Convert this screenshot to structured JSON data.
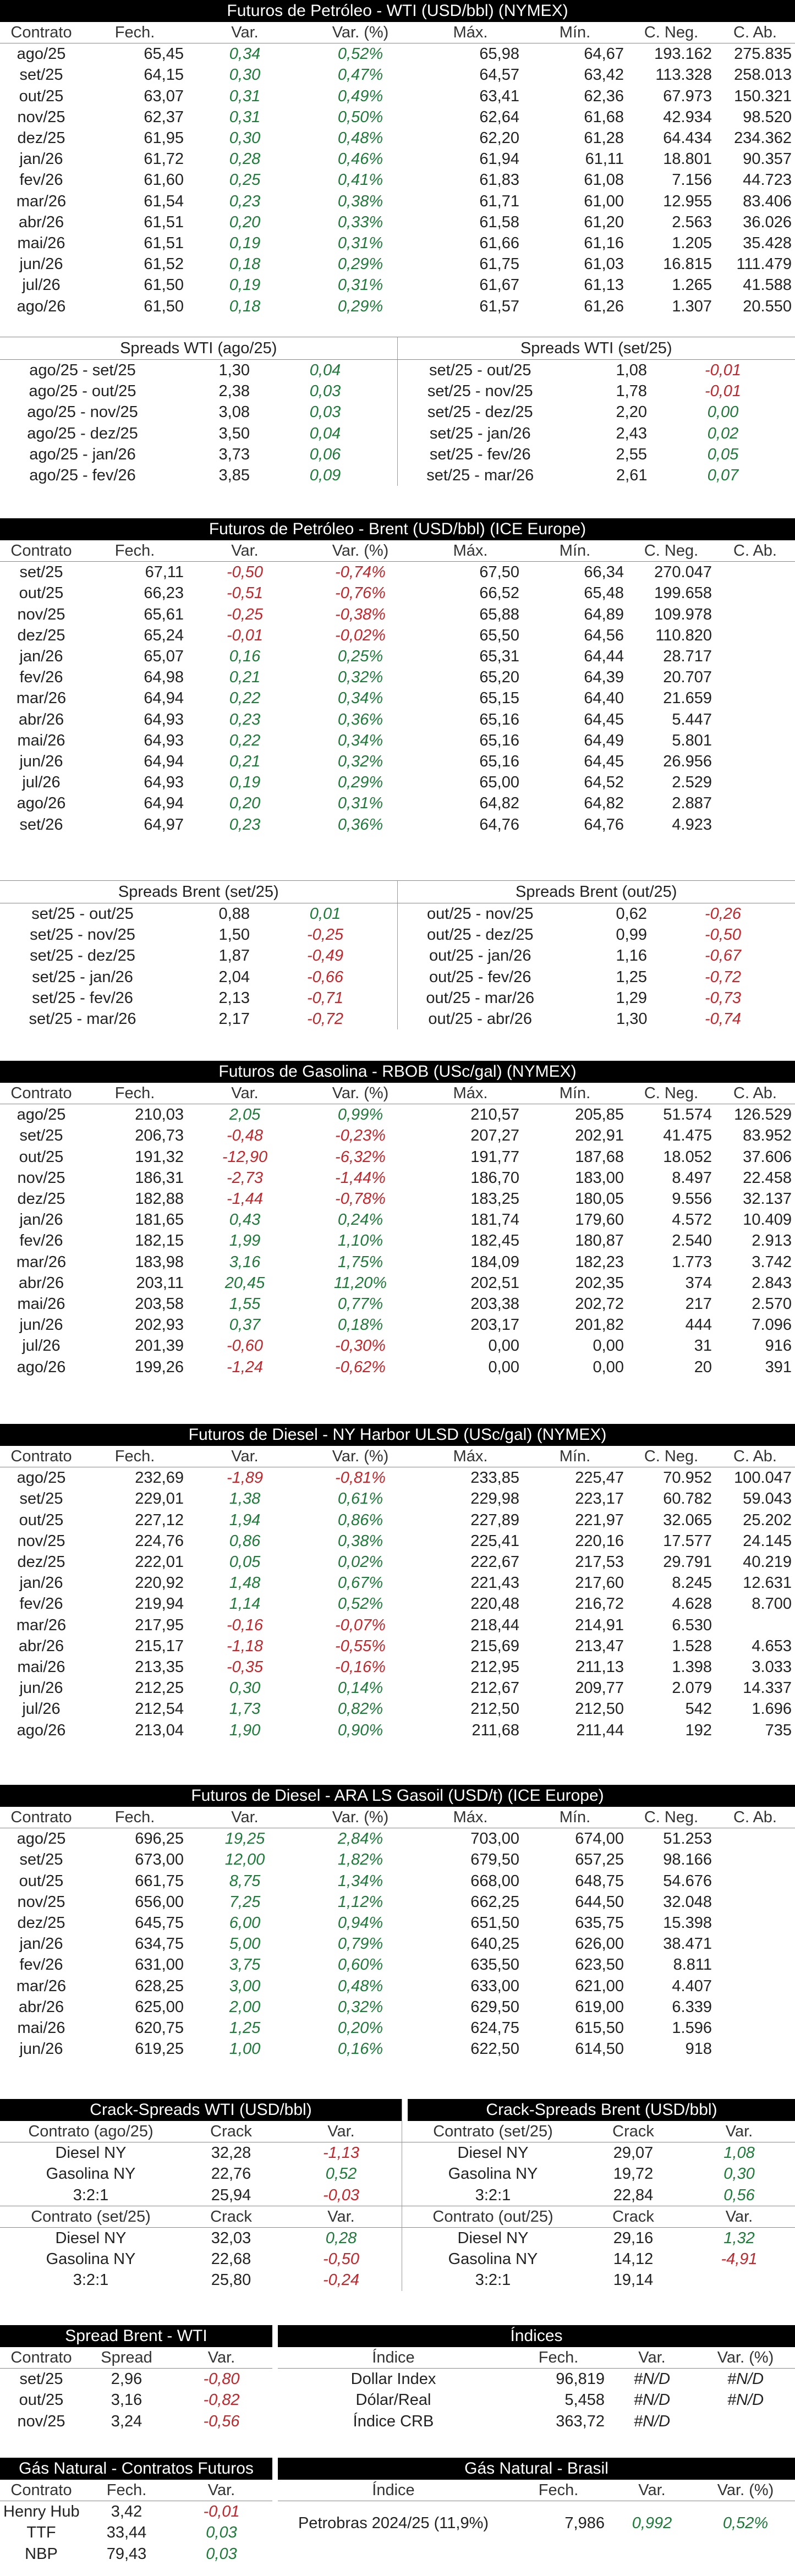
{
  "wti": {
    "title": "Futuros de Petróleo - WTI (USD/bbl) (NYMEX)",
    "cols": [
      "Contrato",
      "Fech.",
      "Var.",
      "Var. (%)",
      "Máx.",
      "Mín.",
      "C. Neg.",
      "C. Ab."
    ],
    "rows": [
      [
        "ago/25",
        "65,45",
        "0,34",
        "0,52%",
        "65,98",
        "64,67",
        "193.162",
        "275.835"
      ],
      [
        "set/25",
        "64,15",
        "0,30",
        "0,47%",
        "64,57",
        "63,42",
        "113.328",
        "258.013"
      ],
      [
        "out/25",
        "63,07",
        "0,31",
        "0,49%",
        "63,41",
        "62,36",
        "67.973",
        "150.321"
      ],
      [
        "nov/25",
        "62,37",
        "0,31",
        "0,50%",
        "62,64",
        "61,68",
        "42.934",
        "98.520"
      ],
      [
        "dez/25",
        "61,95",
        "0,30",
        "0,48%",
        "62,20",
        "61,28",
        "64.434",
        "234.362"
      ],
      [
        "jan/26",
        "61,72",
        "0,28",
        "0,46%",
        "61,94",
        "61,11",
        "18.801",
        "90.357"
      ],
      [
        "fev/26",
        "61,60",
        "0,25",
        "0,41%",
        "61,83",
        "61,08",
        "7.156",
        "44.723"
      ],
      [
        "mar/26",
        "61,54",
        "0,23",
        "0,38%",
        "61,71",
        "61,00",
        "12.955",
        "83.406"
      ],
      [
        "abr/26",
        "61,51",
        "0,20",
        "0,33%",
        "61,58",
        "61,20",
        "2.563",
        "36.026"
      ],
      [
        "mai/26",
        "61,51",
        "0,19",
        "0,31%",
        "61,66",
        "61,16",
        "1.205",
        "35.428"
      ],
      [
        "jun/26",
        "61,52",
        "0,18",
        "0,29%",
        "61,75",
        "61,03",
        "16.815",
        "111.479"
      ],
      [
        "jul/26",
        "61,50",
        "0,19",
        "0,31%",
        "61,67",
        "61,13",
        "1.265",
        "41.588"
      ],
      [
        "ago/26",
        "61,50",
        "0,18",
        "0,29%",
        "61,57",
        "61,26",
        "1.307",
        "20.550"
      ]
    ]
  },
  "wti_spreads": {
    "left_title": "Spreads WTI (ago/25)",
    "right_title": "Spreads WTI (set/25)",
    "left": [
      [
        "ago/25 - set/25",
        "1,30",
        "0,04"
      ],
      [
        "ago/25 - out/25",
        "2,38",
        "0,03"
      ],
      [
        "ago/25 - nov/25",
        "3,08",
        "0,03"
      ],
      [
        "ago/25 - dez/25",
        "3,50",
        "0,04"
      ],
      [
        "ago/25 - jan/26",
        "3,73",
        "0,06"
      ],
      [
        "ago/25 - fev/26",
        "3,85",
        "0,09"
      ]
    ],
    "right": [
      [
        "set/25 - out/25",
        "1,08",
        "-0,01"
      ],
      [
        "set/25 - nov/25",
        "1,78",
        "-0,01"
      ],
      [
        "set/25 - dez/25",
        "2,20",
        "0,00"
      ],
      [
        "set/25 - jan/26",
        "2,43",
        "0,02"
      ],
      [
        "set/25 - fev/26",
        "2,55",
        "0,05"
      ],
      [
        "set/25 - mar/26",
        "2,61",
        "0,07"
      ]
    ]
  },
  "brent": {
    "title": "Futuros de Petróleo - Brent (USD/bbl) (ICE Europe)",
    "cols": [
      "Contrato",
      "Fech.",
      "Var.",
      "Var. (%)",
      "Máx.",
      "Mín.",
      "C. Neg.",
      "C. Ab."
    ],
    "rows": [
      [
        "set/25",
        "67,11",
        "-0,50",
        "-0,74%",
        "67,50",
        "66,34",
        "270.047",
        ""
      ],
      [
        "out/25",
        "66,23",
        "-0,51",
        "-0,76%",
        "66,52",
        "65,48",
        "199.658",
        ""
      ],
      [
        "nov/25",
        "65,61",
        "-0,25",
        "-0,38%",
        "65,88",
        "64,89",
        "109.978",
        ""
      ],
      [
        "dez/25",
        "65,24",
        "-0,01",
        "-0,02%",
        "65,50",
        "64,56",
        "110.820",
        ""
      ],
      [
        "jan/26",
        "65,07",
        "0,16",
        "0,25%",
        "65,31",
        "64,44",
        "28.717",
        ""
      ],
      [
        "fev/26",
        "64,98",
        "0,21",
        "0,32%",
        "65,20",
        "64,39",
        "20.707",
        ""
      ],
      [
        "mar/26",
        "64,94",
        "0,22",
        "0,34%",
        "65,15",
        "64,40",
        "21.659",
        ""
      ],
      [
        "abr/26",
        "64,93",
        "0,23",
        "0,36%",
        "65,16",
        "64,45",
        "5.447",
        ""
      ],
      [
        "mai/26",
        "64,93",
        "0,22",
        "0,34%",
        "65,16",
        "64,49",
        "5.801",
        ""
      ],
      [
        "jun/26",
        "64,94",
        "0,21",
        "0,32%",
        "65,16",
        "64,45",
        "26.956",
        ""
      ],
      [
        "jul/26",
        "64,93",
        "0,19",
        "0,29%",
        "65,00",
        "64,52",
        "2.529",
        ""
      ],
      [
        "ago/26",
        "64,94",
        "0,20",
        "0,31%",
        "64,82",
        "64,82",
        "2.887",
        ""
      ],
      [
        "set/26",
        "64,97",
        "0,23",
        "0,36%",
        "64,76",
        "64,76",
        "4.923",
        ""
      ]
    ]
  },
  "brent_spreads": {
    "left_title": "Spreads Brent (set/25)",
    "right_title": "Spreads Brent (out/25)",
    "left": [
      [
        "set/25 - out/25",
        "0,88",
        "0,01"
      ],
      [
        "set/25 - nov/25",
        "1,50",
        "-0,25"
      ],
      [
        "set/25 - dez/25",
        "1,87",
        "-0,49"
      ],
      [
        "set/25 - jan/26",
        "2,04",
        "-0,66"
      ],
      [
        "set/25 - fev/26",
        "2,13",
        "-0,71"
      ],
      [
        "set/25 - mar/26",
        "2,17",
        "-0,72"
      ]
    ],
    "right": [
      [
        "out/25 - nov/25",
        "0,62",
        "-0,26"
      ],
      [
        "out/25 - dez/25",
        "0,99",
        "-0,50"
      ],
      [
        "out/25 - jan/26",
        "1,16",
        "-0,67"
      ],
      [
        "out/25 - fev/26",
        "1,25",
        "-0,72"
      ],
      [
        "out/25 - mar/26",
        "1,29",
        "-0,73"
      ],
      [
        "out/25 - abr/26",
        "1,30",
        "-0,74"
      ]
    ]
  },
  "rbob": {
    "title": "Futuros de Gasolina - RBOB (USc/gal) (NYMEX)",
    "cols": [
      "Contrato",
      "Fech.",
      "Var.",
      "Var. (%)",
      "Máx.",
      "Mín.",
      "C. Neg.",
      "C. Ab."
    ],
    "rows": [
      [
        "ago/25",
        "210,03",
        "2,05",
        "0,99%",
        "210,57",
        "205,85",
        "51.574",
        "126.529"
      ],
      [
        "set/25",
        "206,73",
        "-0,48",
        "-0,23%",
        "207,27",
        "202,91",
        "41.475",
        "83.952"
      ],
      [
        "out/25",
        "191,32",
        "-12,90",
        "-6,32%",
        "191,77",
        "187,68",
        "18.052",
        "37.606"
      ],
      [
        "nov/25",
        "186,31",
        "-2,73",
        "-1,44%",
        "186,70",
        "183,00",
        "8.497",
        "22.458"
      ],
      [
        "dez/25",
        "182,88",
        "-1,44",
        "-0,78%",
        "183,25",
        "180,05",
        "9.556",
        "32.137"
      ],
      [
        "jan/26",
        "181,65",
        "0,43",
        "0,24%",
        "181,74",
        "179,60",
        "4.572",
        "10.409"
      ],
      [
        "fev/26",
        "182,15",
        "1,99",
        "1,10%",
        "182,45",
        "180,87",
        "2.540",
        "2.913"
      ],
      [
        "mar/26",
        "183,98",
        "3,16",
        "1,75%",
        "184,09",
        "182,23",
        "1.773",
        "3.742"
      ],
      [
        "abr/26",
        "203,11",
        "20,45",
        "11,20%",
        "202,51",
        "202,35",
        "374",
        "2.843"
      ],
      [
        "mai/26",
        "203,58",
        "1,55",
        "0,77%",
        "203,38",
        "202,72",
        "217",
        "2.570"
      ],
      [
        "jun/26",
        "202,93",
        "0,37",
        "0,18%",
        "203,17",
        "201,82",
        "444",
        "7.096"
      ],
      [
        "jul/26",
        "201,39",
        "-0,60",
        "-0,30%",
        "0,00",
        "0,00",
        "31",
        "916"
      ],
      [
        "ago/26",
        "199,26",
        "-1,24",
        "-0,62%",
        "0,00",
        "0,00",
        "20",
        "391"
      ]
    ]
  },
  "ulsd": {
    "title": "Futuros de Diesel - NY Harbor ULSD (USc/gal) (NYMEX)",
    "cols": [
      "Contrato",
      "Fech.",
      "Var.",
      "Var. (%)",
      "Máx.",
      "Mín.",
      "C. Neg.",
      "C. Ab."
    ],
    "rows": [
      [
        "ago/25",
        "232,69",
        "-1,89",
        "-0,81%",
        "233,85",
        "225,47",
        "70.952",
        "100.047"
      ],
      [
        "set/25",
        "229,01",
        "1,38",
        "0,61%",
        "229,98",
        "223,17",
        "60.782",
        "59.043"
      ],
      [
        "out/25",
        "227,12",
        "1,94",
        "0,86%",
        "227,89",
        "221,97",
        "32.065",
        "25.202"
      ],
      [
        "nov/25",
        "224,76",
        "0,86",
        "0,38%",
        "225,41",
        "220,16",
        "17.577",
        "24.145"
      ],
      [
        "dez/25",
        "222,01",
        "0,05",
        "0,02%",
        "222,67",
        "217,53",
        "29.791",
        "40.219"
      ],
      [
        "jan/26",
        "220,92",
        "1,48",
        "0,67%",
        "221,43",
        "217,60",
        "8.245",
        "12.631"
      ],
      [
        "fev/26",
        "219,94",
        "1,14",
        "0,52%",
        "220,48",
        "216,72",
        "4.628",
        "8.700"
      ],
      [
        "mar/26",
        "217,95",
        "-0,16",
        "-0,07%",
        "218,44",
        "214,91",
        "6.530",
        ""
      ],
      [
        "abr/26",
        "215,17",
        "-1,18",
        "-0,55%",
        "215,69",
        "213,47",
        "1.528",
        "4.653"
      ],
      [
        "mai/26",
        "213,35",
        "-0,35",
        "-0,16%",
        "212,95",
        "211,13",
        "1.398",
        "3.033"
      ],
      [
        "jun/26",
        "212,25",
        "0,30",
        "0,14%",
        "212,67",
        "209,77",
        "2.079",
        "14.337"
      ],
      [
        "jul/26",
        "212,54",
        "1,73",
        "0,82%",
        "212,50",
        "212,50",
        "542",
        "1.696"
      ],
      [
        "ago/26",
        "213,04",
        "1,90",
        "0,90%",
        "211,68",
        "211,44",
        "192",
        "735"
      ]
    ]
  },
  "gasoil": {
    "title": "Futuros de Diesel - ARA LS Gasoil (USD/t) (ICE Europe)",
    "cols": [
      "Contrato",
      "Fech.",
      "Var.",
      "Var. (%)",
      "Máx.",
      "Mín.",
      "C. Neg.",
      "C. Ab."
    ],
    "rows": [
      [
        "ago/25",
        "696,25",
        "19,25",
        "2,84%",
        "703,00",
        "674,00",
        "51.253",
        ""
      ],
      [
        "set/25",
        "673,00",
        "12,00",
        "1,82%",
        "679,50",
        "657,25",
        "98.166",
        ""
      ],
      [
        "out/25",
        "661,75",
        "8,75",
        "1,34%",
        "668,00",
        "648,75",
        "54.676",
        ""
      ],
      [
        "nov/25",
        "656,00",
        "7,25",
        "1,12%",
        "662,25",
        "644,50",
        "32.048",
        ""
      ],
      [
        "dez/25",
        "645,75",
        "6,00",
        "0,94%",
        "651,50",
        "635,75",
        "15.398",
        ""
      ],
      [
        "jan/26",
        "634,75",
        "5,00",
        "0,79%",
        "640,25",
        "626,00",
        "38.471",
        ""
      ],
      [
        "fev/26",
        "631,00",
        "3,75",
        "0,60%",
        "635,50",
        "623,50",
        "8.811",
        ""
      ],
      [
        "mar/26",
        "628,25",
        "3,00",
        "0,48%",
        "633,00",
        "621,00",
        "4.407",
        ""
      ],
      [
        "abr/26",
        "625,00",
        "2,00",
        "0,32%",
        "629,50",
        "619,00",
        "6.339",
        ""
      ],
      [
        "mai/26",
        "620,75",
        "1,25",
        "0,20%",
        "624,75",
        "615,50",
        "1.596",
        ""
      ],
      [
        "jun/26",
        "619,25",
        "1,00",
        "0,16%",
        "622,50",
        "614,50",
        "918",
        ""
      ]
    ]
  },
  "crack_wti": {
    "title": "Crack-Spreads WTI (USD/bbl)",
    "group1_cols": [
      "Contrato (ago/25)",
      "Crack",
      "Var."
    ],
    "group1": [
      [
        "Diesel NY",
        "32,28",
        "-1,13"
      ],
      [
        "Gasolina NY",
        "22,76",
        "0,52"
      ],
      [
        "3:2:1",
        "25,94",
        "-0,03"
      ]
    ],
    "group2_cols": [
      "Contrato (set/25)",
      "Crack",
      "Var."
    ],
    "group2": [
      [
        "Diesel NY",
        "32,03",
        "0,28"
      ],
      [
        "Gasolina NY",
        "22,68",
        "-0,50"
      ],
      [
        "3:2:1",
        "25,80",
        "-0,24"
      ]
    ]
  },
  "crack_brent": {
    "title": "Crack-Spreads Brent (USD/bbl)",
    "group1_cols": [
      "Contrato (set/25)",
      "Crack",
      "Var."
    ],
    "group1": [
      [
        "Diesel NY",
        "29,07",
        "1,08"
      ],
      [
        "Gasolina NY",
        "19,72",
        "0,30"
      ],
      [
        "3:2:1",
        "22,84",
        "0,56"
      ]
    ],
    "group2_cols": [
      "Contrato (out/25)",
      "Crack",
      "Var."
    ],
    "group2": [
      [
        "Diesel NY",
        "29,16",
        "1,32"
      ],
      [
        "Gasolina NY",
        "14,12",
        "-4,91"
      ],
      [
        "3:2:1",
        "19,14",
        ""
      ]
    ]
  },
  "spread_bw": {
    "title": "Spread Brent - WTI",
    "cols": [
      "Contrato",
      "Spread",
      "Var."
    ],
    "rows": [
      [
        "set/25",
        "2,96",
        "-0,80"
      ],
      [
        "out/25",
        "3,16",
        "-0,82"
      ],
      [
        "nov/25",
        "3,24",
        "-0,56"
      ]
    ]
  },
  "indices": {
    "title": "Índices",
    "cols": [
      "Índice",
      "Fech.",
      "Var.",
      "Var. (%)"
    ],
    "rows": [
      [
        "Dollar Index",
        "96,819",
        "#N/D",
        "#N/D"
      ],
      [
        "Dólar/Real",
        "5,458",
        "#N/D",
        "#N/D"
      ],
      [
        "Índice CRB",
        "363,72",
        "#N/D",
        ""
      ]
    ]
  },
  "gas_futures": {
    "title": "Gás Natural - Contratos Futuros",
    "cols": [
      "Contrato",
      "Fech.",
      "Var."
    ],
    "rows": [
      [
        "Henry Hub",
        "3,42",
        "-0,01"
      ],
      [
        "TTF",
        "33,44",
        "0,03"
      ],
      [
        "NBP",
        "79,43",
        "0,03"
      ]
    ]
  },
  "gas_brasil": {
    "title": "Gás Natural - Brasil",
    "cols": [
      "Índice",
      "Fech.",
      "Var.",
      "Var. (%)"
    ],
    "rows": [
      [
        "Petrobras 2024/25 (11,9%)",
        "7,986",
        "0,992",
        "0,52%"
      ]
    ]
  }
}
